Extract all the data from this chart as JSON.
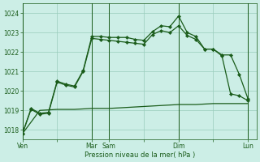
{
  "bg_color": "#cceee6",
  "grid_color": "#99ccbb",
  "line_color": "#1a5c1a",
  "xlabel": "Pression niveau de la mer( hPa )",
  "ylim": [
    1017.5,
    1024.5
  ],
  "yticks": [
    1018,
    1019,
    1020,
    1021,
    1022,
    1023,
    1024
  ],
  "xtick_labels": [
    "Ven",
    "",
    "Mar",
    "Sam",
    "",
    "Dim",
    "",
    "Lun"
  ],
  "xtick_pos": [
    0,
    4,
    8,
    10,
    14,
    18,
    22,
    26
  ],
  "vline_pos": [
    0,
    8,
    10,
    18,
    26
  ],
  "xlim": [
    0,
    27
  ],
  "s_high": {
    "x": [
      0,
      1,
      2,
      3,
      4,
      5,
      6,
      7,
      8,
      9,
      10,
      11,
      12,
      13,
      14,
      15,
      16,
      17,
      18,
      19,
      20,
      21,
      22,
      23,
      24,
      25,
      26
    ],
    "y": [
      1017.8,
      1019.1,
      1018.85,
      1018.9,
      1020.5,
      1020.35,
      1020.25,
      1021.05,
      1022.8,
      1022.8,
      1022.75,
      1022.75,
      1022.75,
      1022.65,
      1022.6,
      1023.05,
      1023.35,
      1023.3,
      1023.85,
      1023.0,
      1022.8,
      1022.15,
      1022.15,
      1021.85,
      1021.85,
      1020.85,
      1019.6
    ],
    "markers": true
  },
  "s_mid": {
    "x": [
      0,
      1,
      2,
      3,
      4,
      5,
      6,
      7,
      8,
      9,
      10,
      11,
      12,
      13,
      14,
      15,
      16,
      17,
      18,
      19,
      20,
      21,
      22,
      23,
      24,
      25,
      26
    ],
    "y": [
      1017.8,
      1019.05,
      1018.8,
      1018.85,
      1020.45,
      1020.3,
      1020.2,
      1021.0,
      1022.7,
      1022.65,
      1022.6,
      1022.55,
      1022.5,
      1022.45,
      1022.4,
      1022.9,
      1023.1,
      1023.0,
      1023.35,
      1022.85,
      1022.65,
      1022.15,
      1022.15,
      1021.8,
      1019.85,
      1019.75,
      1019.5
    ],
    "markers": true
  },
  "s_low": {
    "x": [
      0,
      2,
      4,
      6,
      8,
      10,
      12,
      14,
      16,
      18,
      20,
      22,
      24,
      26
    ],
    "y": [
      1017.8,
      1019.0,
      1019.05,
      1019.05,
      1019.1,
      1019.1,
      1019.15,
      1019.2,
      1019.25,
      1019.3,
      1019.3,
      1019.35,
      1019.35,
      1019.35
    ],
    "markers": false
  }
}
